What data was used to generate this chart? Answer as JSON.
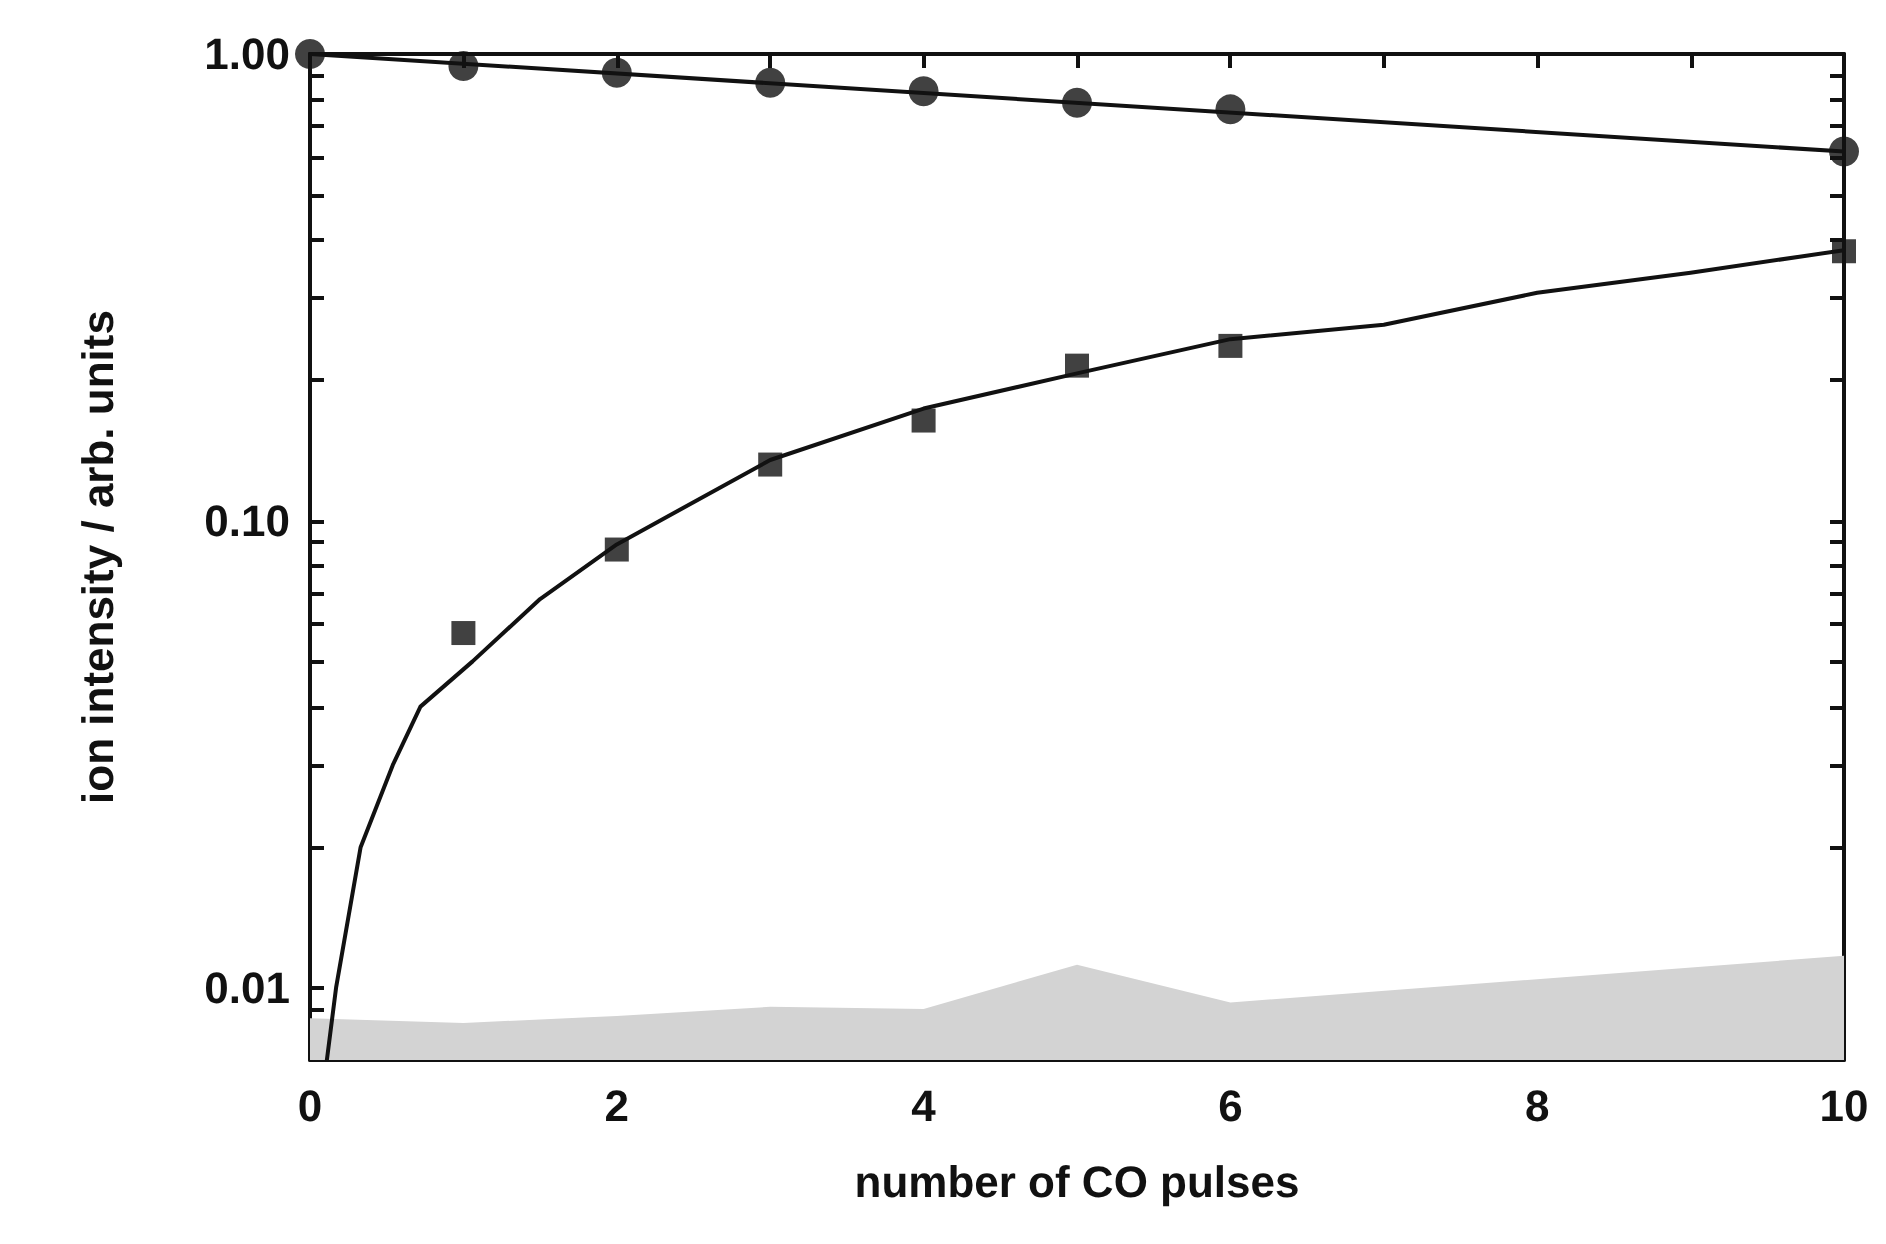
{
  "chart_data": {
    "type": "scatter",
    "xlabel": "number of CO pulses",
    "ylabel": "ion intensity / arb. units",
    "xlim": [
      0,
      10
    ],
    "ylim": [
      0.007,
      1
    ],
    "log": "y",
    "grid": false,
    "xticks": [
      0,
      {
        "value": 1,
        "label": null
      },
      2,
      {
        "value": 3,
        "label": null
      },
      4,
      {
        "value": 5,
        "label": null
      },
      6,
      {
        "value": 7,
        "label": null
      },
      8,
      {
        "value": 9,
        "label": null
      },
      10
    ],
    "yticks": [
      {
        "value": 0.007,
        "label": null
      },
      {
        "value": 0.008,
        "label": null
      },
      {
        "value": 0.009,
        "label": null
      },
      {
        "value": 0.01,
        "label": "0.01"
      },
      {
        "value": 0.02,
        "label": null
      },
      {
        "value": 0.03,
        "label": null
      },
      {
        "value": 0.04,
        "label": null
      },
      {
        "value": 0.05,
        "label": null
      },
      {
        "value": 0.06,
        "label": null
      },
      {
        "value": 0.07,
        "label": null
      },
      {
        "value": 0.08,
        "label": null
      },
      {
        "value": 0.09,
        "label": null
      },
      {
        "value": 0.1,
        "label": "0.10"
      },
      {
        "value": 0.2,
        "label": null
      },
      {
        "value": 0.3,
        "label": null
      },
      {
        "value": 0.4,
        "label": null
      },
      {
        "value": 0.5,
        "label": null
      },
      {
        "value": 0.6,
        "label": null
      },
      {
        "value": 0.7,
        "label": null
      },
      {
        "value": 0.8,
        "label": null
      },
      {
        "value": 0.9,
        "label": null
      },
      {
        "value": 1,
        "label": "1.00"
      }
    ],
    "series": [
      {
        "type": "area",
        "color": "#d3d3d3",
        "marker": "none",
        "x": [
          0,
          1,
          2,
          3,
          4,
          5,
          6,
          10
        ],
        "values": [
          0.0086,
          0.0084,
          0.0087,
          0.0091,
          0.009,
          0.0112,
          0.0093,
          0.0117
        ]
      },
      {
        "type": "line",
        "color": "#111111",
        "marker": "none",
        "line_style": "solid",
        "x": [
          0,
          10
        ],
        "values": [
          1,
          0.618
        ]
      },
      {
        "type": "line",
        "color": "#111111",
        "marker": "none",
        "line_style": "solid",
        "x": [
          0.11,
          0.17,
          0.33,
          0.54,
          0.72,
          1.06,
          1.5,
          2,
          3,
          4,
          5,
          6,
          7,
          8,
          9,
          10
        ],
        "values": [
          0.007,
          0.01,
          0.02,
          0.03,
          0.04,
          0.05,
          0.068,
          0.089,
          0.135,
          0.174,
          0.207,
          0.245,
          0.263,
          0.308,
          0.34,
          0.38
        ]
      },
      {
        "color": "#111111",
        "marker": "circle",
        "x": [
          0,
          1,
          2,
          3,
          4,
          5,
          6,
          10
        ],
        "values": [
          1,
          0.943,
          0.912,
          0.868,
          0.832,
          0.786,
          0.761,
          0.618
        ]
      },
      {
        "color": "#111111",
        "marker": "square",
        "x": [
          1,
          2,
          3,
          4,
          5,
          6,
          10
        ],
        "values": [
          0.0575,
          0.0868,
          0.132,
          0.164,
          0.215,
          0.237,
          0.378
        ]
      }
    ]
  }
}
